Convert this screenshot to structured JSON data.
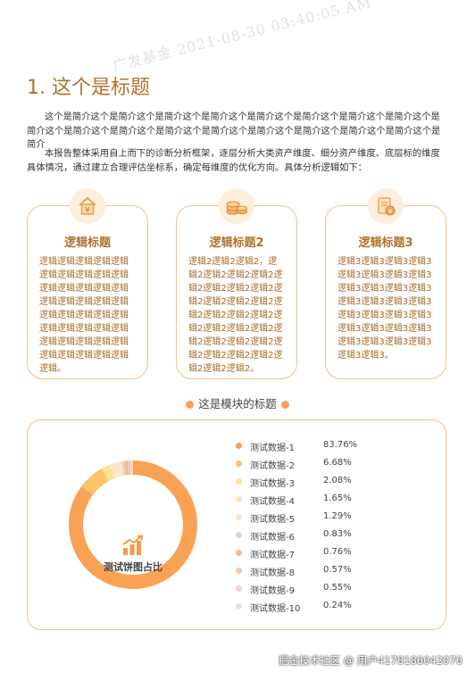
{
  "watermark": "广发基金 2021-08-30 03:40:05 AM",
  "title": "1. 这个是标题",
  "paragraphs": [
    "这个是简介这个是简介这个是简介这个是简介这个是简介这个是简介这个是简介这个是简介这个是简介这个是简介这个是简介这个是简介这个是简介这个是简介这个是简介这个是简介这个是简介这个是简介",
    "本报告整体采用自上而下的诊断分析框架，逐层分析大类资产维度、细分资产维度、底层标的维度具体情况，通过建立合理评估坐标系，确定每维度的优化方向。具体分析逻辑如下："
  ],
  "cards": [
    {
      "icon": "house-coin-icon",
      "title": "逻辑标题",
      "body": "逻辑逻辑逻辑逻辑逻辑逻辑逻辑逻辑逻辑逻辑逻辑逻辑逻辑逻辑逻辑逻辑逻辑逻辑逻辑逻辑逻辑逻辑逻辑逻辑逻辑逻辑逻辑逻辑逻辑逻辑逻辑逻辑逻辑逻辑逻辑逻辑逻辑逻辑逻辑逻辑逻辑。"
    },
    {
      "icon": "coin-stack-icon",
      "title": "逻辑标题2",
      "body": "逻辑2逻辑2逻辑2，逻辑2逻辑2逻辑2逻辑2逻辑2逻辑2逻辑2逻辑2逻辑2逻辑2逻辑2逻辑2逻辑2逻辑2逻辑2逻辑2逻辑2逻辑2逻辑2逻辑2逻辑2逻辑2逻辑2逻辑2逻辑2逻辑2逻辑2逻辑2逻辑2逻辑2逻辑2。"
    },
    {
      "icon": "document-coin-icon",
      "title": "逻辑标题3",
      "body": "逻辑3逻辑3逻辑3逻辑3逻辑3逻辑3逻辑3逻辑3逻辑3逻辑3逻辑3逻辑3逻辑3逻辑3逻辑3逻辑3逻辑3逻辑3逻辑3逻辑3逻辑3逻辑3逻辑3逻辑3逻辑3逻辑3逻辑3逻辑3逻辑3逻辑3。"
    }
  ],
  "section_title": "这是模块的标题",
  "chart_data": {
    "type": "pie",
    "title": "测试饼图占比",
    "categories": [
      "测试数据-1",
      "测试数据-2",
      "测试数据-3",
      "测试数据-4",
      "测试数据-5",
      "测试数据-6",
      "测试数据-7",
      "测试数据-8",
      "测试数据-9",
      "测试数据-10"
    ],
    "values": [
      83.76,
      6.68,
      2.08,
      1.65,
      1.29,
      0.83,
      0.76,
      0.57,
      0.55,
      0.24
    ],
    "labels": [
      "83.76%",
      "6.68%",
      "2.08%",
      "1.65%",
      "1.29%",
      "0.83%",
      "0.76%",
      "0.57%",
      "0.55%",
      "0.24%"
    ],
    "colors": [
      "#f9a155",
      "#fbc36a",
      "#fde29a",
      "#fce5c2",
      "#fde5cc",
      "#dcd5c8",
      "#f1b98c",
      "#f6c9a8",
      "#f7d2d2",
      "#f6dcdc"
    ]
  },
  "footer": "掘金技术社区 @ 用户4178186042076"
}
